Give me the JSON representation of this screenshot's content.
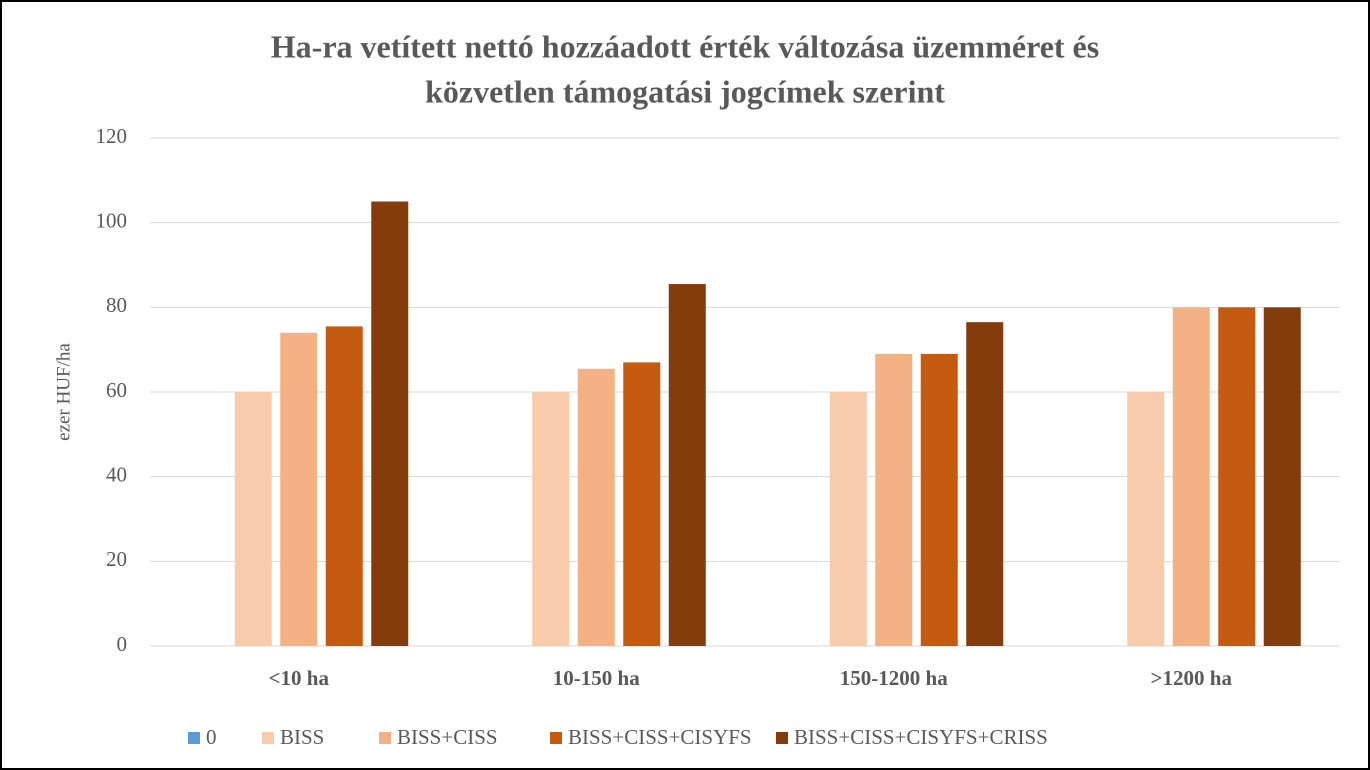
{
  "chart_data": {
    "type": "bar",
    "title": "Ha-ra vetített nettó hozzáadott érték változása üzemméret  és közvetlen támogatási jogcímek szerint",
    "title_lines": [
      "Ha-ra vetített nettó hozzáadott érték változása üzemméret  és",
      "közvetlen támogatási jogcímek szerint"
    ],
    "y_label": "ezer HUF/ha",
    "categories": [
      "<10 ha",
      "10-150 ha",
      "150-1200 ha",
      ">1200 ha"
    ],
    "series": [
      {
        "name": "0",
        "color": "#5b9bd5",
        "values": [
          0,
          0,
          0,
          0
        ]
      },
      {
        "name": "BISS",
        "color": "#f8cbad",
        "values": [
          60,
          60,
          60,
          60
        ]
      },
      {
        "name": "BISS+CISS",
        "color": "#f4b183",
        "values": [
          74,
          65.5,
          69,
          80
        ]
      },
      {
        "name": "BISS+CISS+CISYFS",
        "color": "#c55a11",
        "values": [
          75.5,
          67,
          69,
          80
        ]
      },
      {
        "name": "BISS+CISS+CISYFS+CRISS",
        "color": "#843c0c",
        "values": [
          105,
          85.5,
          76.5,
          80
        ]
      }
    ],
    "ylim": [
      0,
      120
    ],
    "yticks": [
      0,
      20,
      40,
      60,
      80,
      100,
      120
    ],
    "grid": true,
    "legend": "bottom"
  }
}
